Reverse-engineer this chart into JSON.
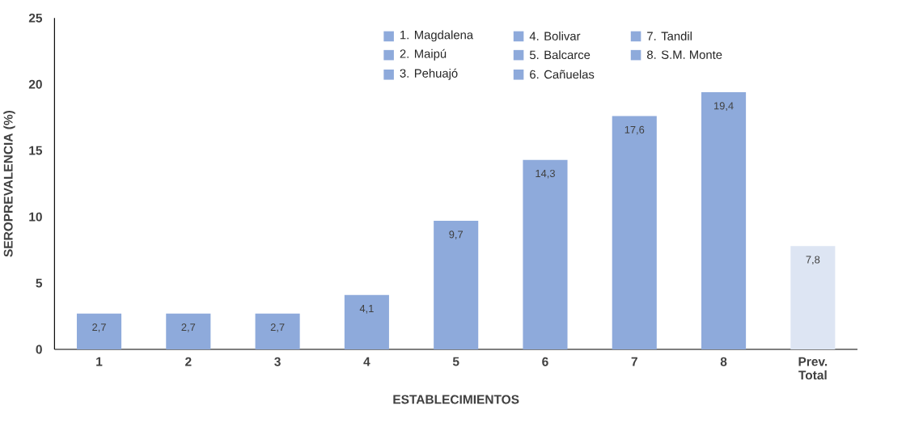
{
  "chart_data": {
    "type": "bar",
    "xlabel": "ESTABLECIMIENTOS",
    "ylabel": "SEROPREVALENCIA  (%)",
    "categories": [
      "1",
      "2",
      "3",
      "4",
      "5",
      "6",
      "7",
      "8",
      "Prev. Total"
    ],
    "values": [
      2.7,
      2.7,
      2.7,
      4.1,
      9.7,
      14.3,
      17.6,
      19.4,
      7.8
    ],
    "value_labels": [
      "2,7",
      "2,7",
      "2,7",
      "4,1",
      "9,7",
      "14,3",
      "17,6",
      "19,4",
      "7,8"
    ],
    "colors": [
      "#8eaadb",
      "#8eaadb",
      "#8eaadb",
      "#8eaadb",
      "#8eaadb",
      "#8eaadb",
      "#8eaadb",
      "#8eaadb",
      "#dde5f3"
    ],
    "ylim": [
      0,
      25
    ],
    "yticks": [
      0,
      5,
      10,
      15,
      20,
      25
    ],
    "grid": false,
    "annotations": [
      "1. Magdalena",
      "2. Maipú",
      "3. Pehuajó",
      "4. Bolivar",
      "5. Balcarce",
      "6. Cañuelas",
      "7. Tandil",
      "8. S.M. Monte"
    ]
  }
}
